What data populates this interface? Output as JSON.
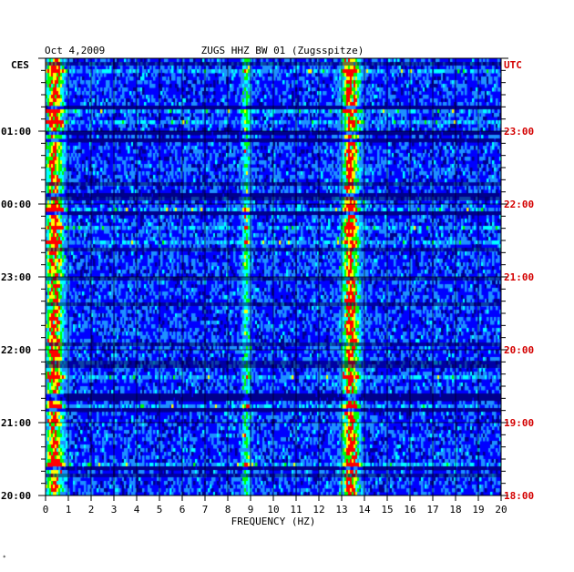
{
  "header": {
    "date": "Oct 4,2009",
    "station": "ZUGS HHZ BW 01 (Zugsspitze)"
  },
  "colors": {
    "left_labels": "#000000",
    "right_labels": "#d40000",
    "grid": "#000000",
    "background": "#ffffff"
  },
  "chart_data": {
    "type": "heatmap",
    "xlabel": "FREQUENCY (HZ)",
    "x_ticks": [
      "0",
      "1",
      "2",
      "3",
      "4",
      "5",
      "6",
      "7",
      "8",
      "9",
      "10",
      "11",
      "12",
      "13",
      "14",
      "15",
      "16",
      "17",
      "18",
      "19",
      "20"
    ],
    "xlim": [
      0,
      20
    ],
    "left_axis_title": "CES",
    "left_ticks": [
      "01:00",
      "00:00",
      "23:00",
      "22:00",
      "21:00",
      "20:00"
    ],
    "right_axis_title": "UTC",
    "right_ticks": [
      "23:00",
      "22:00",
      "21:00",
      "20:00",
      "19:00",
      "18:00"
    ],
    "time_range_utc": [
      "18:00",
      "00:00"
    ],
    "colormap": [
      "#00008b",
      "#0000ff",
      "#1e90ff",
      "#00ffff",
      "#00ff00",
      "#ffff00",
      "#ff0000"
    ],
    "features": [
      {
        "name": "low-frequency band",
        "freq_hz": 0.4,
        "intensity": "high"
      },
      {
        "name": "strong band",
        "freq_hz": 13.4,
        "intensity": "high"
      },
      {
        "name": "weak band",
        "freq_hz": 8.8,
        "intensity": "medium"
      }
    ]
  },
  "footer": {
    "mark": "*"
  }
}
